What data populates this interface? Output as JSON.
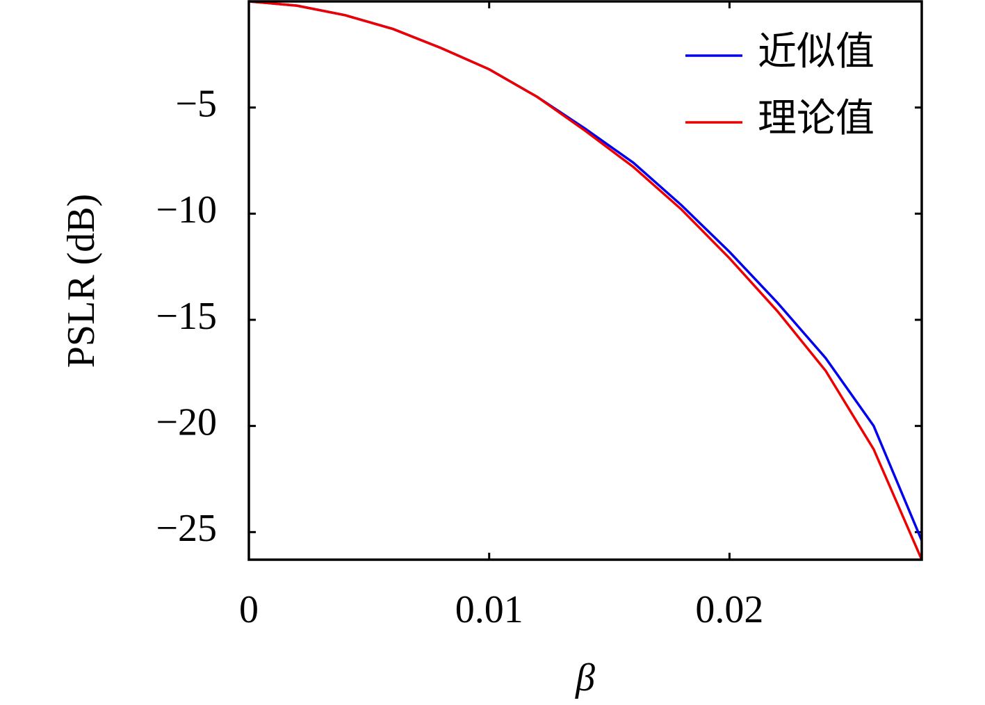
{
  "chart_data": {
    "type": "line",
    "x_label": "β",
    "y_label": "PSLR (dB)",
    "x": [
      0,
      0.002,
      0.004,
      0.006,
      0.008,
      0.01,
      0.012,
      0.014,
      0.016,
      0.018,
      0.02,
      0.022,
      0.024,
      0.026,
      0.028
    ],
    "series": [
      {
        "name": "近似值",
        "color": "#0000ee",
        "values": [
          0,
          -0.2,
          -0.65,
          -1.3,
          -2.2,
          -3.2,
          -4.5,
          -6.0,
          -7.6,
          -9.6,
          -11.8,
          -14.2,
          -16.8,
          -20.0,
          -25.4
        ]
      },
      {
        "name": "理论值",
        "color": "#ee0000",
        "values": [
          0,
          -0.2,
          -0.65,
          -1.3,
          -2.2,
          -3.2,
          -4.5,
          -6.1,
          -7.8,
          -9.8,
          -12.1,
          -14.6,
          -17.4,
          -21.1,
          -26.3
        ]
      }
    ],
    "xlim": [
      0,
      0.028
    ],
    "ylim": [
      -26.3,
      0
    ],
    "xticks": [
      0,
      0.01,
      0.02
    ],
    "yticks": [
      {
        "value": -5,
        "label": "−5"
      },
      {
        "value": -10,
        "label": "−10"
      },
      {
        "value": -15,
        "label": "−15"
      },
      {
        "value": -20,
        "label": "−20"
      },
      {
        "value": -25,
        "label": "−25"
      }
    ],
    "legend": "upper right"
  }
}
